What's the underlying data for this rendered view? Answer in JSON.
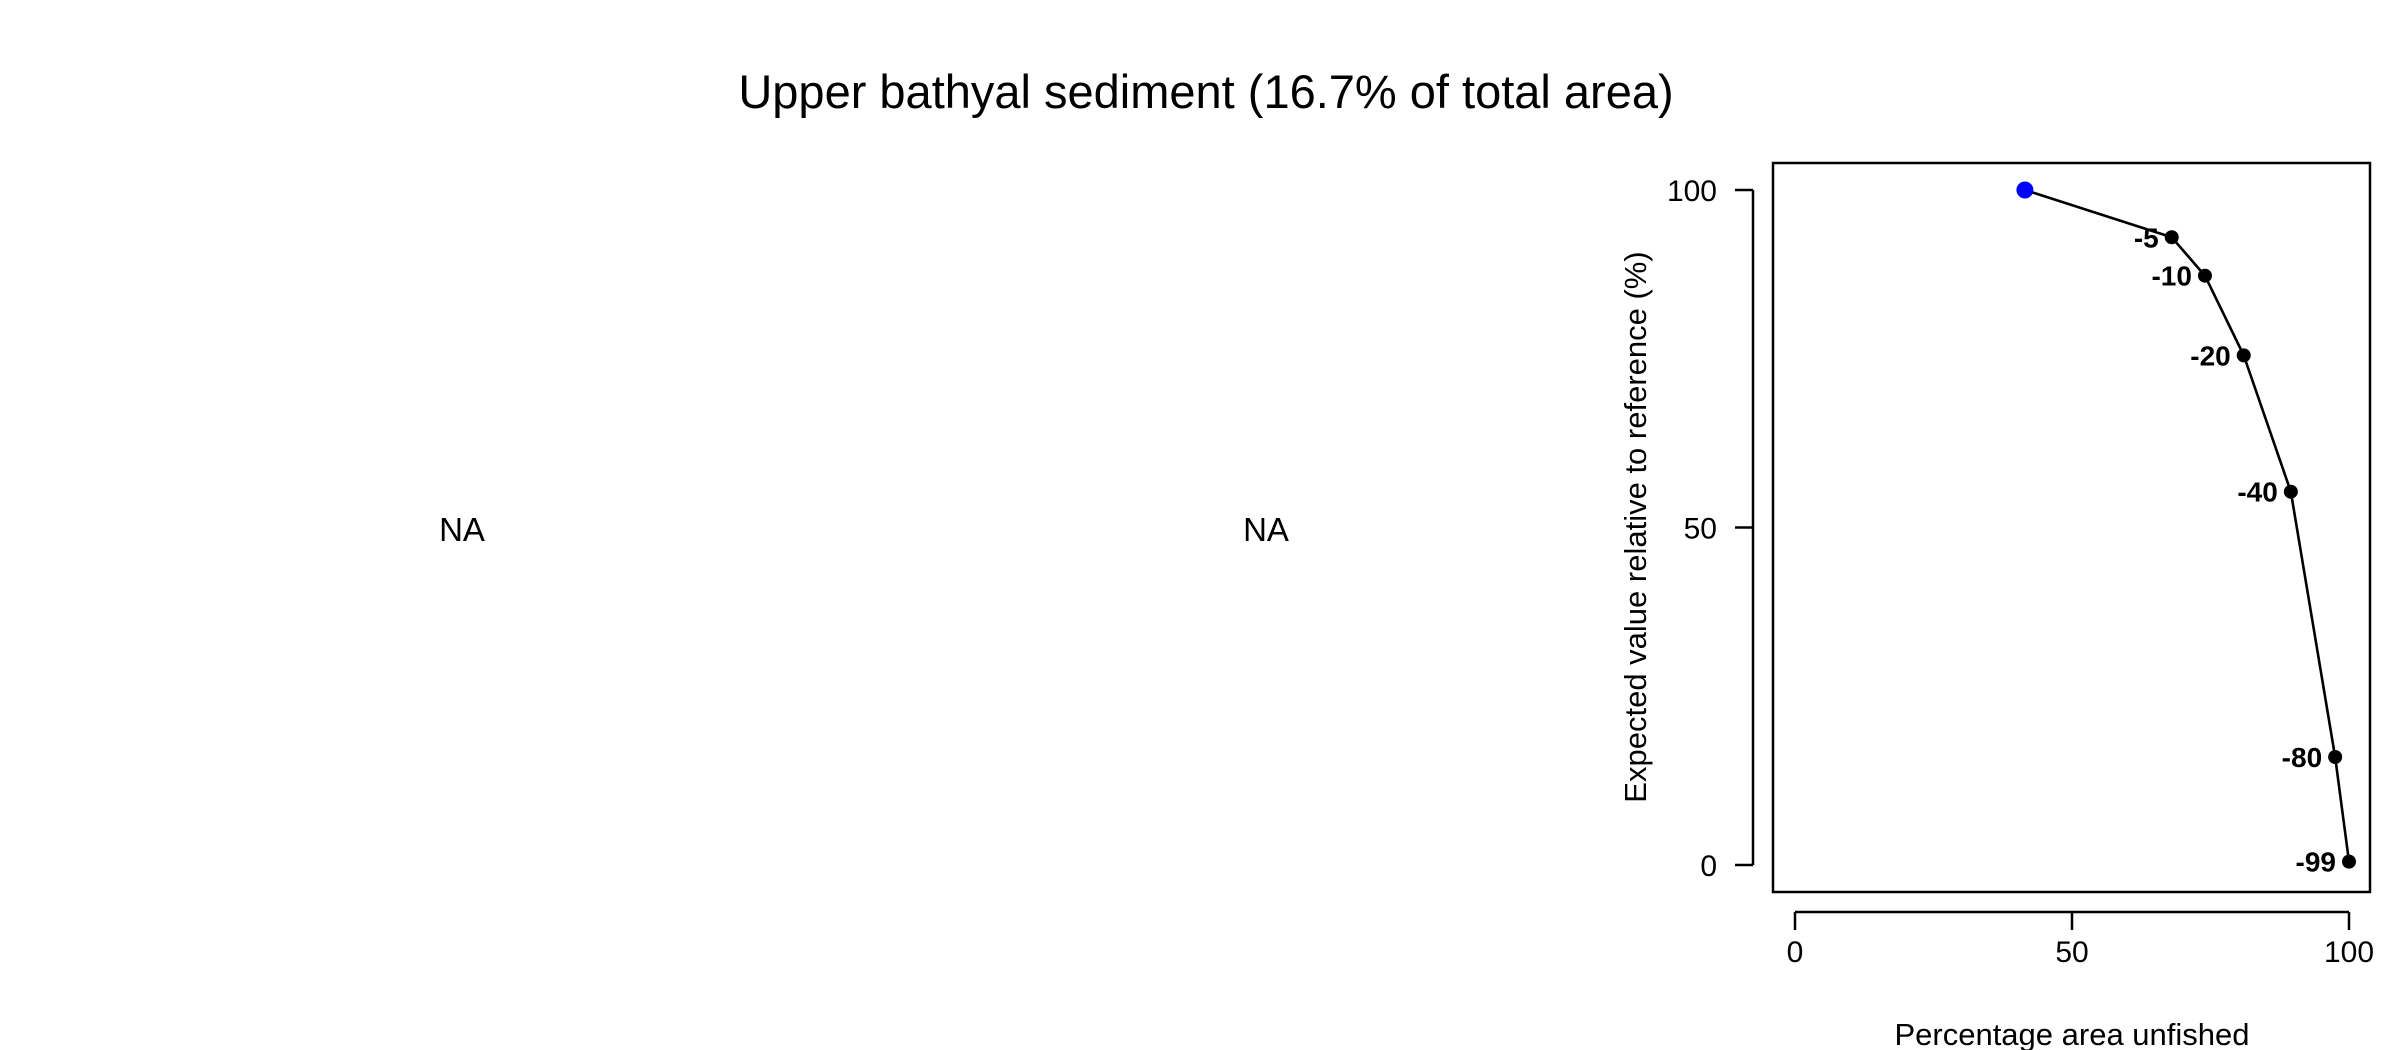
{
  "title": "Upper bathyal sediment (16.7% of total area)",
  "panels": {
    "left": {
      "text": "NA"
    },
    "middle": {
      "text": "NA"
    }
  },
  "chart_data": {
    "type": "line",
    "title": "Upper bathyal sediment (16.7% of total area)",
    "xlabel": "Percentage area unfished",
    "ylabel": "Expected value relative to reference (%)",
    "xlim": [
      0,
      100
    ],
    "ylim": [
      0,
      100
    ],
    "xticks": [
      0,
      50,
      100
    ],
    "yticks": [
      0,
      50,
      100
    ],
    "grid": false,
    "legend": "none",
    "reference_point": {
      "x": 41.5,
      "y": 100,
      "color": "#0000ff"
    },
    "series": [
      {
        "color": "#000000",
        "x": [
          41.5,
          68,
          74,
          81,
          89.5,
          97.5,
          100
        ],
        "y": [
          100,
          93,
          87.3,
          75.5,
          55.3,
          16,
          0.5
        ],
        "labels": [
          "",
          "-5",
          "-10",
          "-20",
          "-40",
          "-80",
          "-99"
        ]
      }
    ]
  }
}
